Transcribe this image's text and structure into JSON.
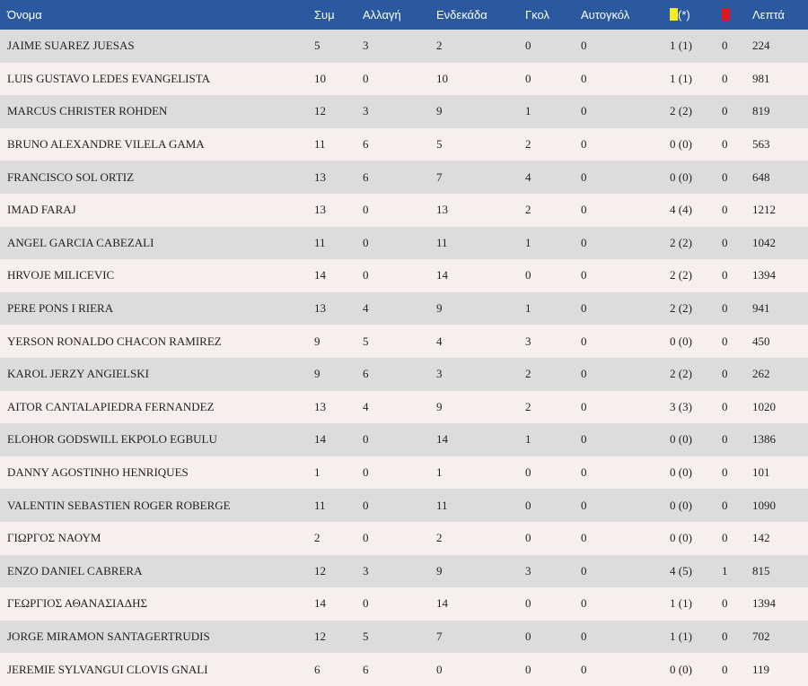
{
  "colors": {
    "header_bg": "#2a59a0",
    "row_odd": "#dcdcdc",
    "row_even": "#f7eeee",
    "yellow_card": "#f4ed1a",
    "red_card": "#e4131b"
  },
  "header": {
    "name": "Όνομα",
    "apps": "Συμ",
    "subs": "Αλλαγή",
    "starts": "Ενδεκάδα",
    "goals": "Γκολ",
    "own_goals": "Αυτογκόλ",
    "yellow_suffix": "(*)",
    "yellow_icon": "yellow-card-icon",
    "red_icon": "red-card-icon",
    "minutes": "Λεπτά"
  },
  "rows": [
    {
      "name": "JAIME SUAREZ JUESAS",
      "apps": "5",
      "subs": "3",
      "starts": "2",
      "goals": "0",
      "own_goals": "0",
      "yellow": "1 (1)",
      "red": "0",
      "minutes": "224"
    },
    {
      "name": "LUIS GUSTAVO LEDES EVANGELISTA",
      "apps": "10",
      "subs": "0",
      "starts": "10",
      "goals": "0",
      "own_goals": "0",
      "yellow": "1 (1)",
      "red": "0",
      "minutes": "981"
    },
    {
      "name": "MARCUS CHRISTER ROHDEN",
      "apps": "12",
      "subs": "3",
      "starts": "9",
      "goals": "1",
      "own_goals": "0",
      "yellow": "2 (2)",
      "red": "0",
      "minutes": "819"
    },
    {
      "name": "BRUNO ALEXANDRE VILELA GAMA",
      "apps": "11",
      "subs": "6",
      "starts": "5",
      "goals": "2",
      "own_goals": "0",
      "yellow": "0 (0)",
      "red": "0",
      "minutes": "563"
    },
    {
      "name": "FRANCISCO SOL ORTIZ",
      "apps": "13",
      "subs": "6",
      "starts": "7",
      "goals": "4",
      "own_goals": "0",
      "yellow": "0 (0)",
      "red": "0",
      "minutes": "648"
    },
    {
      "name": "IMAD FARAJ",
      "apps": "13",
      "subs": "0",
      "starts": "13",
      "goals": "2",
      "own_goals": "0",
      "yellow": "4 (4)",
      "red": "0",
      "minutes": "1212"
    },
    {
      "name": "ANGEL GARCIA CABEZALI",
      "apps": "11",
      "subs": "0",
      "starts": "11",
      "goals": "1",
      "own_goals": "0",
      "yellow": "2 (2)",
      "red": "0",
      "minutes": "1042"
    },
    {
      "name": "HRVOJE MILICEVIC",
      "apps": "14",
      "subs": "0",
      "starts": "14",
      "goals": "0",
      "own_goals": "0",
      "yellow": "2 (2)",
      "red": "0",
      "minutes": "1394"
    },
    {
      "name": "PERE PONS I RIERA",
      "apps": "13",
      "subs": "4",
      "starts": "9",
      "goals": "1",
      "own_goals": "0",
      "yellow": "2 (2)",
      "red": "0",
      "minutes": "941"
    },
    {
      "name": "YERSON RONALDO CHACON RAMIREZ",
      "apps": "9",
      "subs": "5",
      "starts": "4",
      "goals": "3",
      "own_goals": "0",
      "yellow": "0 (0)",
      "red": "0",
      "minutes": "450"
    },
    {
      "name": "KAROL JERZY ANGIELSKI",
      "apps": "9",
      "subs": "6",
      "starts": "3",
      "goals": "2",
      "own_goals": "0",
      "yellow": "2 (2)",
      "red": "0",
      "minutes": "262"
    },
    {
      "name": "AITOR CANTALAPIEDRA FERNANDEZ",
      "apps": "13",
      "subs": "4",
      "starts": "9",
      "goals": "2",
      "own_goals": "0",
      "yellow": "3 (3)",
      "red": "0",
      "minutes": "1020"
    },
    {
      "name": "ELOHOR GODSWILL EKPOLO EGBULU",
      "apps": "14",
      "subs": "0",
      "starts": "14",
      "goals": "1",
      "own_goals": "0",
      "yellow": "0 (0)",
      "red": "0",
      "minutes": "1386"
    },
    {
      "name": "DANNY AGOSTINHO HENRIQUES",
      "apps": "1",
      "subs": "0",
      "starts": "1",
      "goals": "0",
      "own_goals": "0",
      "yellow": "0 (0)",
      "red": "0",
      "minutes": "101"
    },
    {
      "name": "VALENTIN SEBASTIEN ROGER ROBERGE",
      "apps": "11",
      "subs": "0",
      "starts": "11",
      "goals": "0",
      "own_goals": "0",
      "yellow": "0 (0)",
      "red": "0",
      "minutes": "1090"
    },
    {
      "name": "ΓΙΩΡΓΟΣ ΝΑΟΥΜ",
      "apps": "2",
      "subs": "0",
      "starts": "2",
      "goals": "0",
      "own_goals": "0",
      "yellow": "0 (0)",
      "red": "0",
      "minutes": "142"
    },
    {
      "name": "ENZO DANIEL CABRERA",
      "apps": "12",
      "subs": "3",
      "starts": "9",
      "goals": "3",
      "own_goals": "0",
      "yellow": "4 (5)",
      "red": "1",
      "minutes": "815"
    },
    {
      "name": "ΓΕΩΡΓΙΟΣ ΑΘΑΝΑΣΙΑΔΗΣ",
      "apps": "14",
      "subs": "0",
      "starts": "14",
      "goals": "0",
      "own_goals": "0",
      "yellow": "1 (1)",
      "red": "0",
      "minutes": "1394"
    },
    {
      "name": "JORGE MIRAMON SANTAGERTRUDIS",
      "apps": "12",
      "subs": "5",
      "starts": "7",
      "goals": "0",
      "own_goals": "0",
      "yellow": "1 (1)",
      "red": "0",
      "minutes": "702"
    },
    {
      "name": "JEREMIE SYLVANGUI CLOVIS GNALI",
      "apps": "6",
      "subs": "6",
      "starts": "0",
      "goals": "0",
      "own_goals": "0",
      "yellow": "0 (0)",
      "red": "0",
      "minutes": "119"
    }
  ]
}
